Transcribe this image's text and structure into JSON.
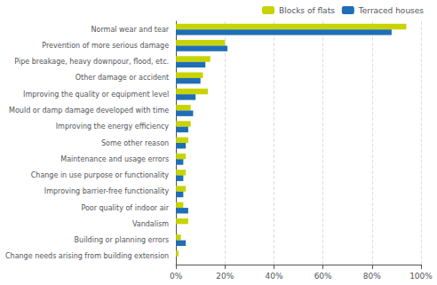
{
  "chart_data": {
    "type": "bar",
    "orientation": "horizontal",
    "categories": [
      "Normal wear and tear",
      "Prevention of more serious damage",
      "Pipe breakage, heavy downpour, flood, etc.",
      "Other damage or accident",
      "Improving the quality or equipment level",
      "Mould or damp damage developed with time",
      "Improving the energy efficiency",
      "Some other reason",
      "Maintenance and usage errors",
      "Change in use purpose or functionality",
      "Improving barrier-free functionality",
      "Poor quality of indoor air",
      "Vandalism",
      "Building or planning errors",
      "Change needs arising from building extension"
    ],
    "series": [
      {
        "name": "Blocks of flats",
        "color": "#c8d400",
        "values": [
          94,
          20,
          14,
          11,
          13,
          6,
          6,
          5,
          4,
          4,
          4,
          3,
          5,
          2,
          1
        ]
      },
      {
        "name": "Terraced houses",
        "color": "#1f6eb5",
        "values": [
          88,
          21,
          12,
          10,
          8,
          7,
          5,
          4,
          3,
          3,
          3,
          5,
          0,
          4,
          0
        ]
      }
    ],
    "xlim": [
      0,
      100
    ],
    "xticks": [
      {
        "value": 0,
        "label": "0%"
      },
      {
        "value": 20,
        "label": "20%"
      },
      {
        "value": 40,
        "label": "40%"
      },
      {
        "value": 60,
        "label": "60%"
      },
      {
        "value": 80,
        "label": "80%"
      },
      {
        "value": 100,
        "label": "100%"
      }
    ],
    "grid": true,
    "legend": "upper right"
  }
}
